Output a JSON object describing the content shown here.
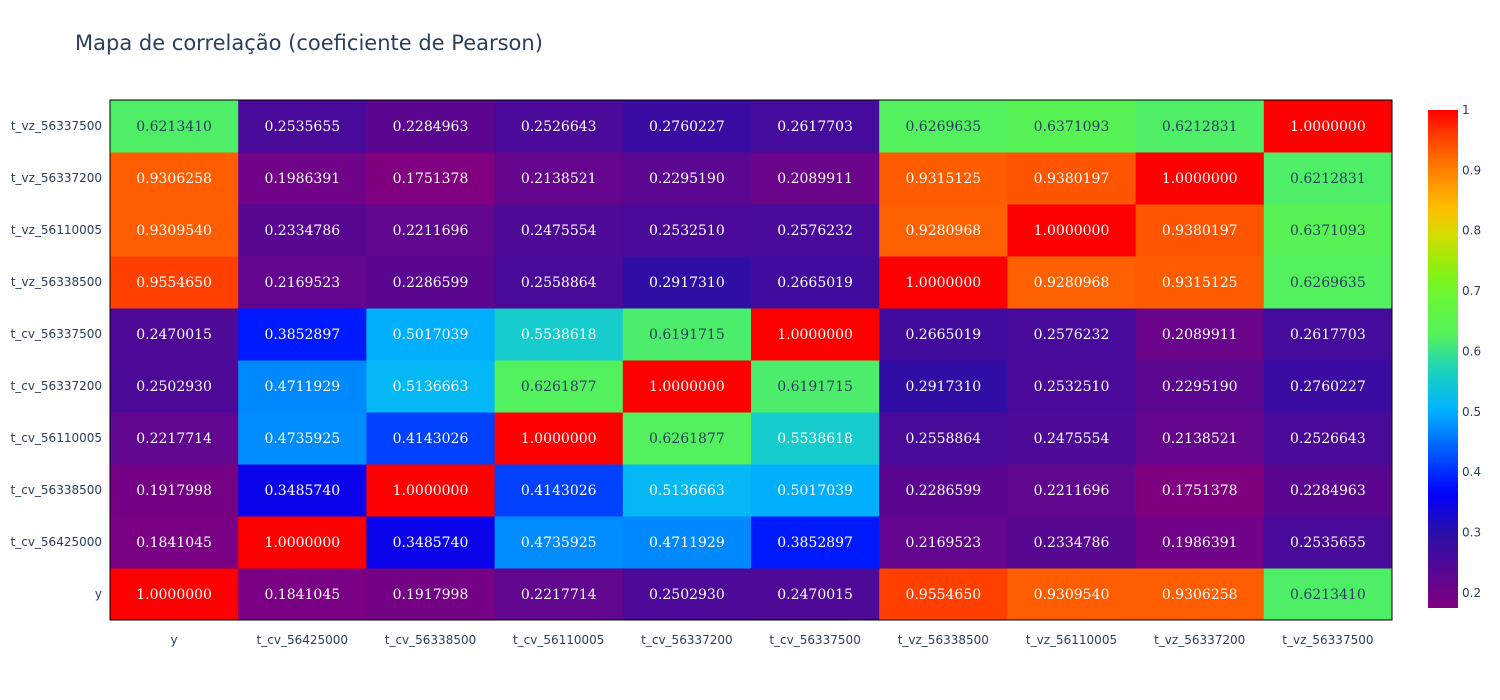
{
  "chart_data": {
    "type": "heatmap",
    "title": "Mapa de correlação (coeficiente de Pearson)",
    "xlabel": "",
    "ylabel": "",
    "x": [
      "y",
      "t_cv_56425000",
      "t_cv_56338500",
      "t_cv_56110005",
      "t_cv_56337200",
      "t_cv_56337500",
      "t_vz_56338500",
      "t_vz_56110005",
      "t_vz_56337200",
      "t_vz_56337500"
    ],
    "y": [
      "y",
      "t_cv_56425000",
      "t_cv_56338500",
      "t_cv_56110005",
      "t_cv_56337200",
      "t_cv_56337500",
      "t_vz_56338500",
      "t_vz_56110005",
      "t_vz_56337200",
      "t_vz_56337500"
    ],
    "z": [
      [
        1.0,
        0.1841045,
        0.1917998,
        0.2217714,
        0.250293,
        0.2470015,
        0.955465,
        0.930954,
        0.9306258,
        0.621341
      ],
      [
        0.1841045,
        1.0,
        0.348574,
        0.4735925,
        0.4711929,
        0.3852897,
        0.2169523,
        0.2334786,
        0.1986391,
        0.2535655
      ],
      [
        0.1917998,
        0.348574,
        1.0,
        0.4143026,
        0.5136663,
        0.5017039,
        0.2286599,
        0.2211696,
        0.1751378,
        0.2284963
      ],
      [
        0.2217714,
        0.4735925,
        0.4143026,
        1.0,
        0.6261877,
        0.5538618,
        0.2558864,
        0.2475554,
        0.2138521,
        0.2526643
      ],
      [
        0.250293,
        0.4711929,
        0.5136663,
        0.6261877,
        1.0,
        0.6191715,
        0.291731,
        0.253251,
        0.229519,
        0.2760227
      ],
      [
        0.2470015,
        0.3852897,
        0.5017039,
        0.5538618,
        0.6191715,
        1.0,
        0.2665019,
        0.2576232,
        0.2089911,
        0.2617703
      ],
      [
        0.955465,
        0.2169523,
        0.2286599,
        0.2558864,
        0.291731,
        0.2665019,
        1.0,
        0.9280968,
        0.9315125,
        0.6269635
      ],
      [
        0.930954,
        0.2334786,
        0.2211696,
        0.2475554,
        0.253251,
        0.2576232,
        0.9280968,
        1.0,
        0.9380197,
        0.6371093
      ],
      [
        0.9306258,
        0.1986391,
        0.1751378,
        0.2138521,
        0.229519,
        0.2089911,
        0.9315125,
        0.9380197,
        1.0,
        0.6212831
      ],
      [
        0.621341,
        0.2535655,
        0.2284963,
        0.2526643,
        0.2760227,
        0.2617703,
        0.6269635,
        0.6371093,
        0.6212831,
        1.0
      ]
    ],
    "zmin": 0.1751378,
    "zmax": 1.0,
    "colorscale": "rainbow",
    "colorbar": {
      "ticks": [
        0.2,
        0.3,
        0.4,
        0.5,
        0.6,
        0.7,
        0.8,
        0.9,
        1
      ],
      "tick_labels": [
        "0.2",
        "0.3",
        "0.4",
        "0.5",
        "0.6",
        "0.7",
        "0.8",
        "0.9",
        "1"
      ],
      "placement": "right"
    }
  },
  "colors": {
    "title": "#2a3f5f",
    "tick_text": "#2a3f5f",
    "label_dark": "#2a3f5f",
    "label_light": "#ffffff",
    "plot_border": "#000000"
  }
}
